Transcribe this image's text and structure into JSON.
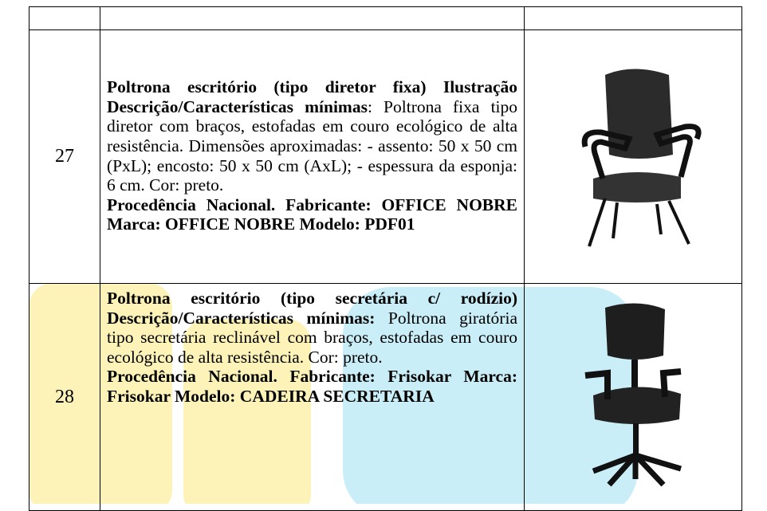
{
  "table": {
    "rows": [
      {
        "number": "27",
        "title": "Poltrona escritório (tipo diretor fixa)",
        "label": "Ilustração Descrição/Características mínimas",
        "text": ": Poltrona fixa tipo diretor com braços, estofadas em couro ecológico de alta resistência. Dimensões aproximadas: - assento: 50 x 50 cm (PxL); encosto: 50 x 50 cm (AxL); - espessura da esponja: 6 cm. Cor: preto.",
        "manufacturer": "Procedência Nacional. Fabricante: OFFICE NOBRE Marca: OFFICE NOBRE Modelo: PDF01"
      },
      {
        "number": "28",
        "title": "Poltrona escritório (tipo secretária c/ rodízio)",
        "label": "Descrição/Características mínimas:",
        "text": " Poltrona giratória tipo secretária reclinável com braços, estofadas em couro ecológico de alta resistência. Cor: preto.",
        "manufacturer": "Procedência Nacional. Fabricante: Frisokar Marca: Frisokar Modelo: CADEIRA SECRETARIA"
      }
    ]
  }
}
